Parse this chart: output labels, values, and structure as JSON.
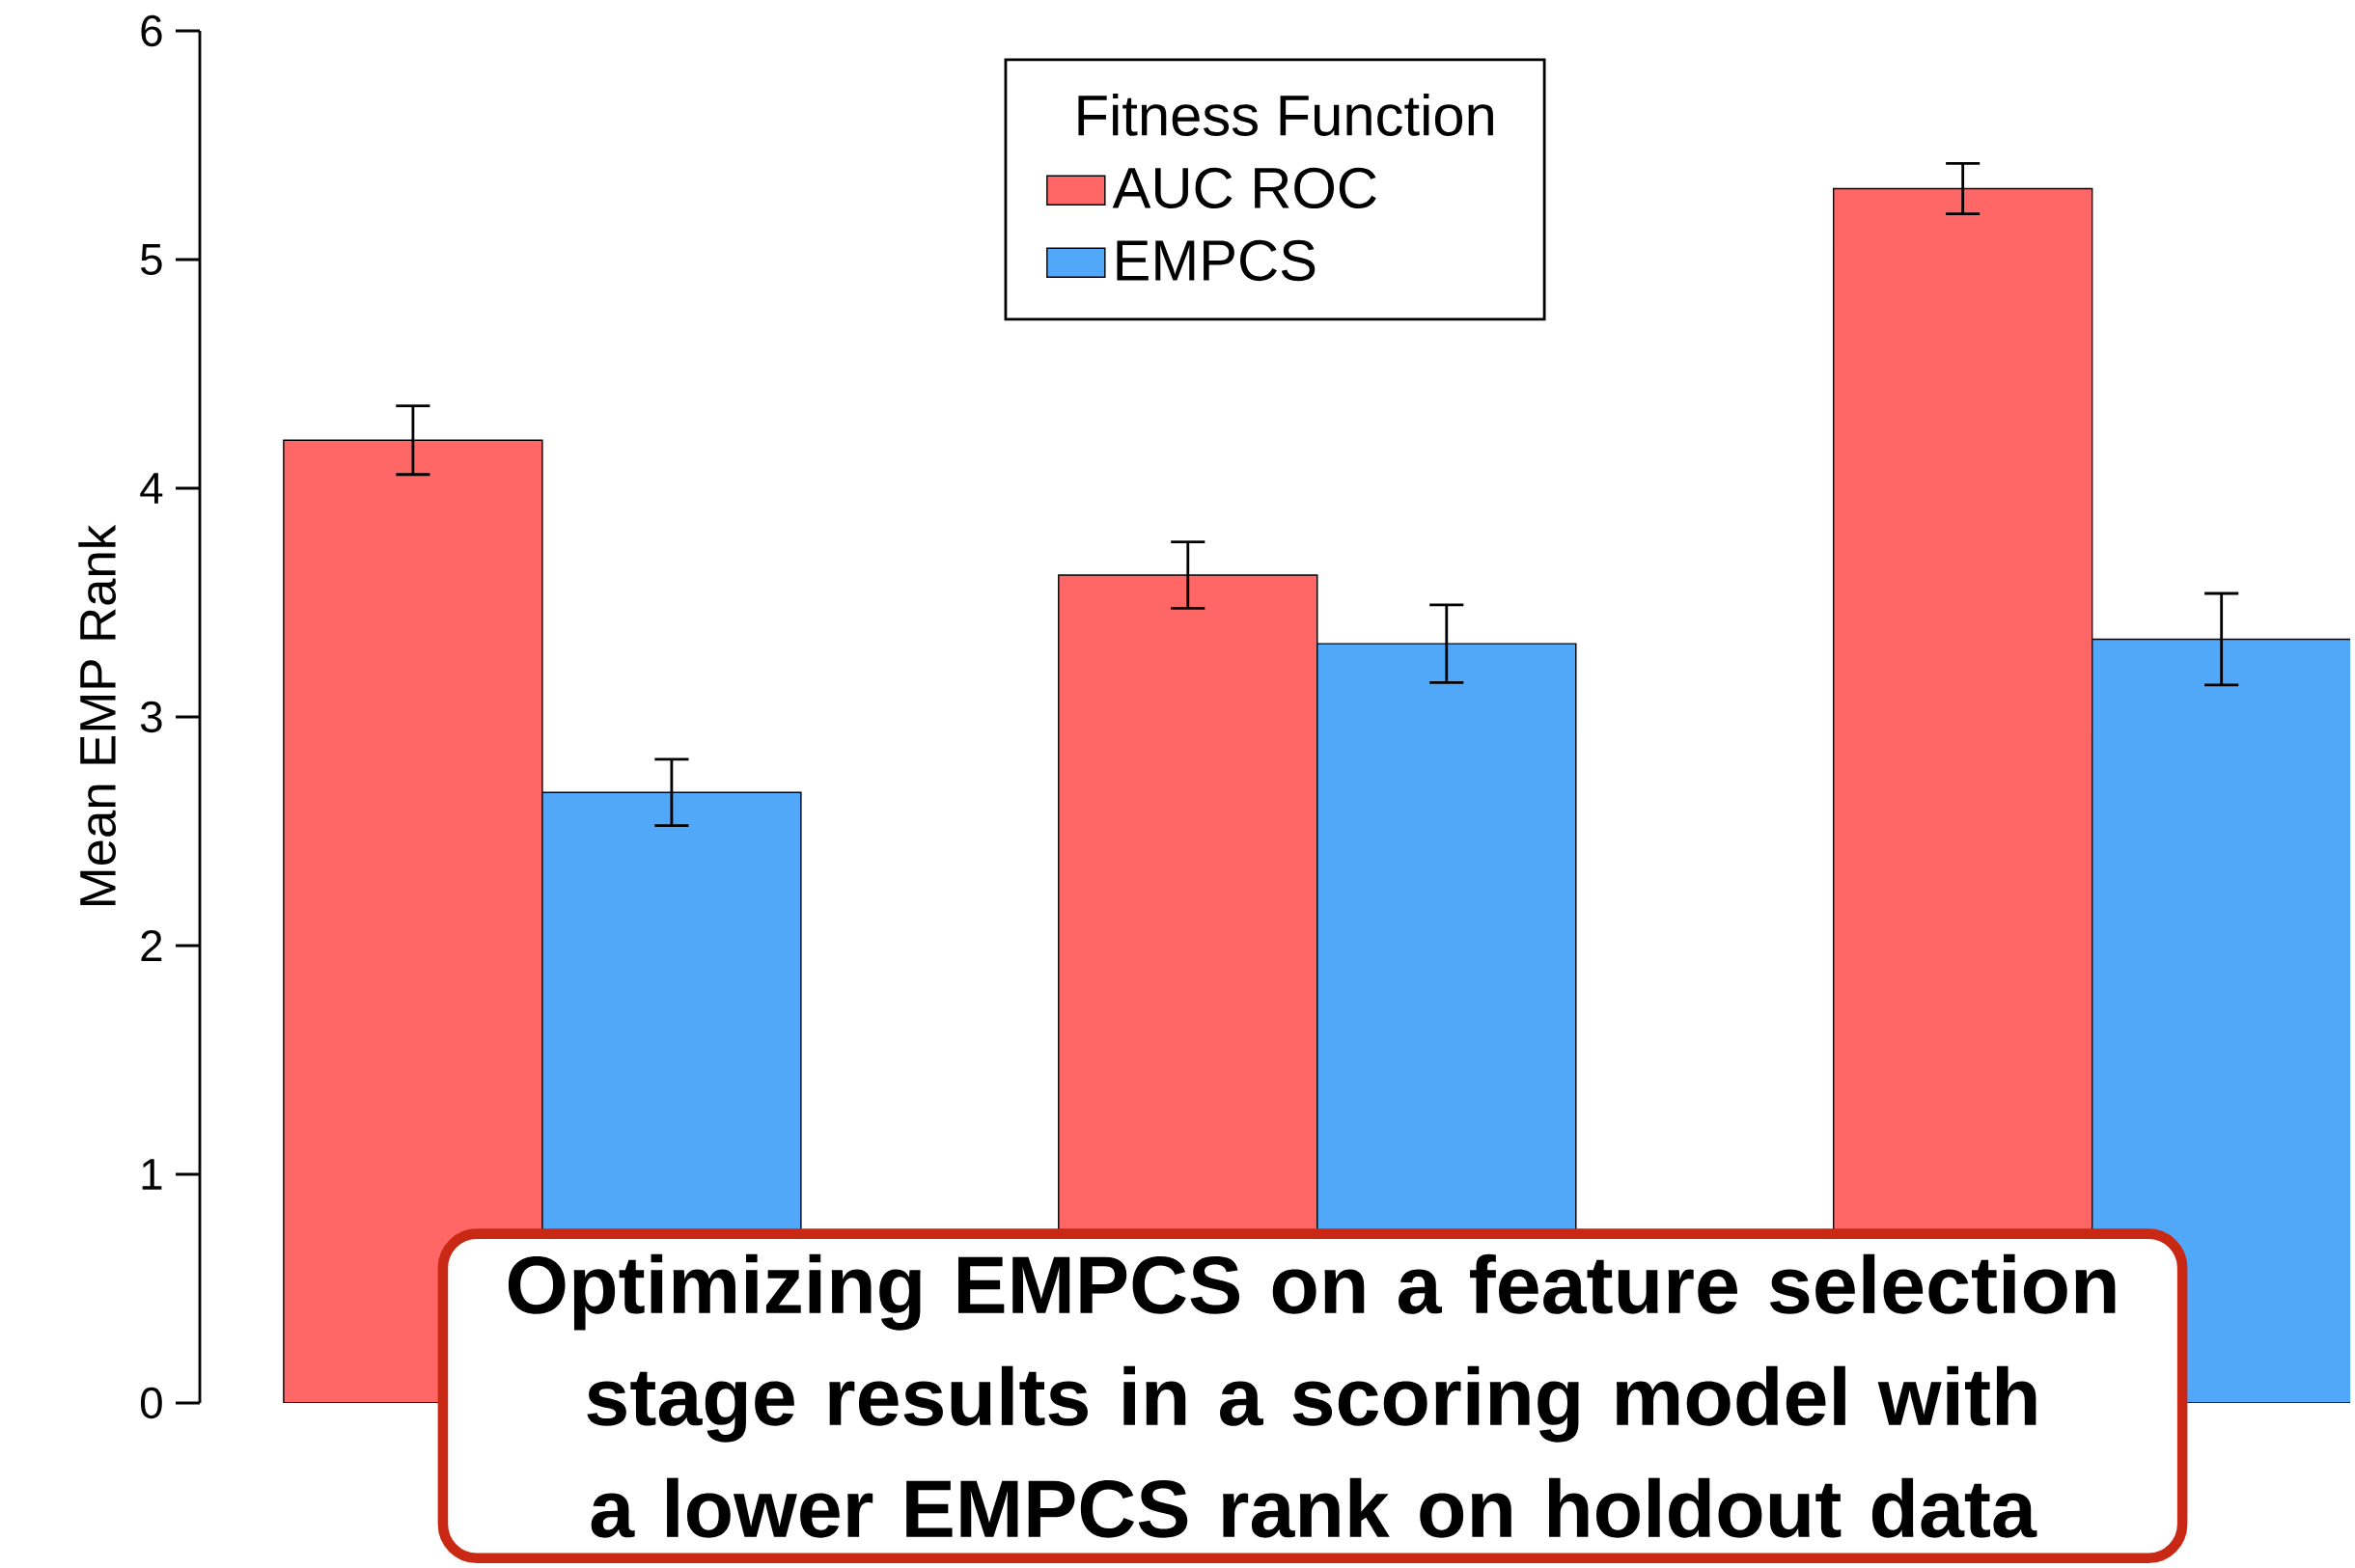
{
  "chart_data": {
    "type": "bar",
    "categories": [
      null,
      null,
      null
    ],
    "ylabel": "Mean EMP Rank",
    "legend_title": "Fitness Function",
    "legend": "top",
    "tick_labels": "y",
    "ylim": [
      0,
      6
    ],
    "yticks": [
      0,
      1,
      2,
      3,
      4,
      5,
      6
    ],
    "series": [
      {
        "name": "AUC ROC",
        "color": "#ff6666",
        "values": [
          4.21,
          3.62,
          5.31
        ],
        "errors": [
          0.15,
          0.145,
          0.11
        ]
      },
      {
        "name": "EMPCS",
        "color": "#52a8f8",
        "values": [
          2.67,
          3.32,
          3.34
        ],
        "errors": [
          0.145,
          0.17,
          0.2
        ]
      }
    ],
    "annotations": [
      "Optimizing EMPCS on a feature selection stage results in a scoring model with a lower EMPCS rank on holdout data"
    ]
  }
}
